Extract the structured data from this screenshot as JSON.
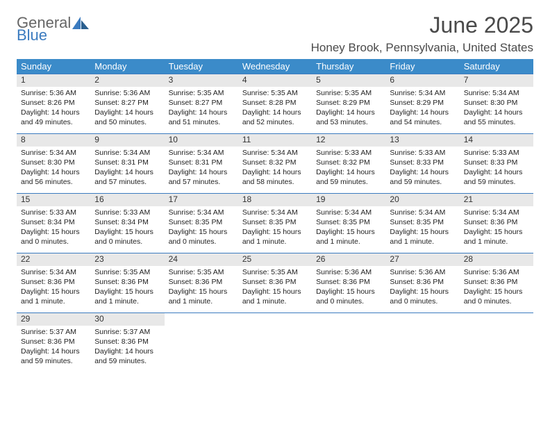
{
  "logo": {
    "word1": "General",
    "word2": "Blue"
  },
  "title": "June 2025",
  "location": "Honey Brook, Pennsylvania, United States",
  "colors": {
    "header_bg": "#3b8bc9",
    "header_text": "#ffffff",
    "daynum_bg": "#e8e8e8",
    "rule": "#3b7bbf",
    "logo_gray": "#666666",
    "logo_blue": "#3b7bbf",
    "title_color": "#4a4a4a",
    "body_text": "#222222",
    "page_bg": "#ffffff"
  },
  "fonts": {
    "title_size": 32,
    "location_size": 17,
    "header_size": 13,
    "daynum_size": 12,
    "cell_size": 10.5
  },
  "weekdays": [
    "Sunday",
    "Monday",
    "Tuesday",
    "Wednesday",
    "Thursday",
    "Friday",
    "Saturday"
  ],
  "weeks": [
    [
      {
        "n": "1",
        "sr": "5:36 AM",
        "ss": "8:26 PM",
        "dl": "14 hours and 49 minutes."
      },
      {
        "n": "2",
        "sr": "5:36 AM",
        "ss": "8:27 PM",
        "dl": "14 hours and 50 minutes."
      },
      {
        "n": "3",
        "sr": "5:35 AM",
        "ss": "8:27 PM",
        "dl": "14 hours and 51 minutes."
      },
      {
        "n": "4",
        "sr": "5:35 AM",
        "ss": "8:28 PM",
        "dl": "14 hours and 52 minutes."
      },
      {
        "n": "5",
        "sr": "5:35 AM",
        "ss": "8:29 PM",
        "dl": "14 hours and 53 minutes."
      },
      {
        "n": "6",
        "sr": "5:34 AM",
        "ss": "8:29 PM",
        "dl": "14 hours and 54 minutes."
      },
      {
        "n": "7",
        "sr": "5:34 AM",
        "ss": "8:30 PM",
        "dl": "14 hours and 55 minutes."
      }
    ],
    [
      {
        "n": "8",
        "sr": "5:34 AM",
        "ss": "8:30 PM",
        "dl": "14 hours and 56 minutes."
      },
      {
        "n": "9",
        "sr": "5:34 AM",
        "ss": "8:31 PM",
        "dl": "14 hours and 57 minutes."
      },
      {
        "n": "10",
        "sr": "5:34 AM",
        "ss": "8:31 PM",
        "dl": "14 hours and 57 minutes."
      },
      {
        "n": "11",
        "sr": "5:34 AM",
        "ss": "8:32 PM",
        "dl": "14 hours and 58 minutes."
      },
      {
        "n": "12",
        "sr": "5:33 AM",
        "ss": "8:32 PM",
        "dl": "14 hours and 59 minutes."
      },
      {
        "n": "13",
        "sr": "5:33 AM",
        "ss": "8:33 PM",
        "dl": "14 hours and 59 minutes."
      },
      {
        "n": "14",
        "sr": "5:33 AM",
        "ss": "8:33 PM",
        "dl": "14 hours and 59 minutes."
      }
    ],
    [
      {
        "n": "15",
        "sr": "5:33 AM",
        "ss": "8:34 PM",
        "dl": "15 hours and 0 minutes."
      },
      {
        "n": "16",
        "sr": "5:33 AM",
        "ss": "8:34 PM",
        "dl": "15 hours and 0 minutes."
      },
      {
        "n": "17",
        "sr": "5:34 AM",
        "ss": "8:35 PM",
        "dl": "15 hours and 0 minutes."
      },
      {
        "n": "18",
        "sr": "5:34 AM",
        "ss": "8:35 PM",
        "dl": "15 hours and 1 minute."
      },
      {
        "n": "19",
        "sr": "5:34 AM",
        "ss": "8:35 PM",
        "dl": "15 hours and 1 minute."
      },
      {
        "n": "20",
        "sr": "5:34 AM",
        "ss": "8:35 PM",
        "dl": "15 hours and 1 minute."
      },
      {
        "n": "21",
        "sr": "5:34 AM",
        "ss": "8:36 PM",
        "dl": "15 hours and 1 minute."
      }
    ],
    [
      {
        "n": "22",
        "sr": "5:34 AM",
        "ss": "8:36 PM",
        "dl": "15 hours and 1 minute."
      },
      {
        "n": "23",
        "sr": "5:35 AM",
        "ss": "8:36 PM",
        "dl": "15 hours and 1 minute."
      },
      {
        "n": "24",
        "sr": "5:35 AM",
        "ss": "8:36 PM",
        "dl": "15 hours and 1 minute."
      },
      {
        "n": "25",
        "sr": "5:35 AM",
        "ss": "8:36 PM",
        "dl": "15 hours and 1 minute."
      },
      {
        "n": "26",
        "sr": "5:36 AM",
        "ss": "8:36 PM",
        "dl": "15 hours and 0 minutes."
      },
      {
        "n": "27",
        "sr": "5:36 AM",
        "ss": "8:36 PM",
        "dl": "15 hours and 0 minutes."
      },
      {
        "n": "28",
        "sr": "5:36 AM",
        "ss": "8:36 PM",
        "dl": "15 hours and 0 minutes."
      }
    ],
    [
      {
        "n": "29",
        "sr": "5:37 AM",
        "ss": "8:36 PM",
        "dl": "14 hours and 59 minutes."
      },
      {
        "n": "30",
        "sr": "5:37 AM",
        "ss": "8:36 PM",
        "dl": "14 hours and 59 minutes."
      },
      null,
      null,
      null,
      null,
      null
    ]
  ],
  "labels": {
    "sunrise": "Sunrise: ",
    "sunset": "Sunset: ",
    "daylight": "Daylight: "
  }
}
